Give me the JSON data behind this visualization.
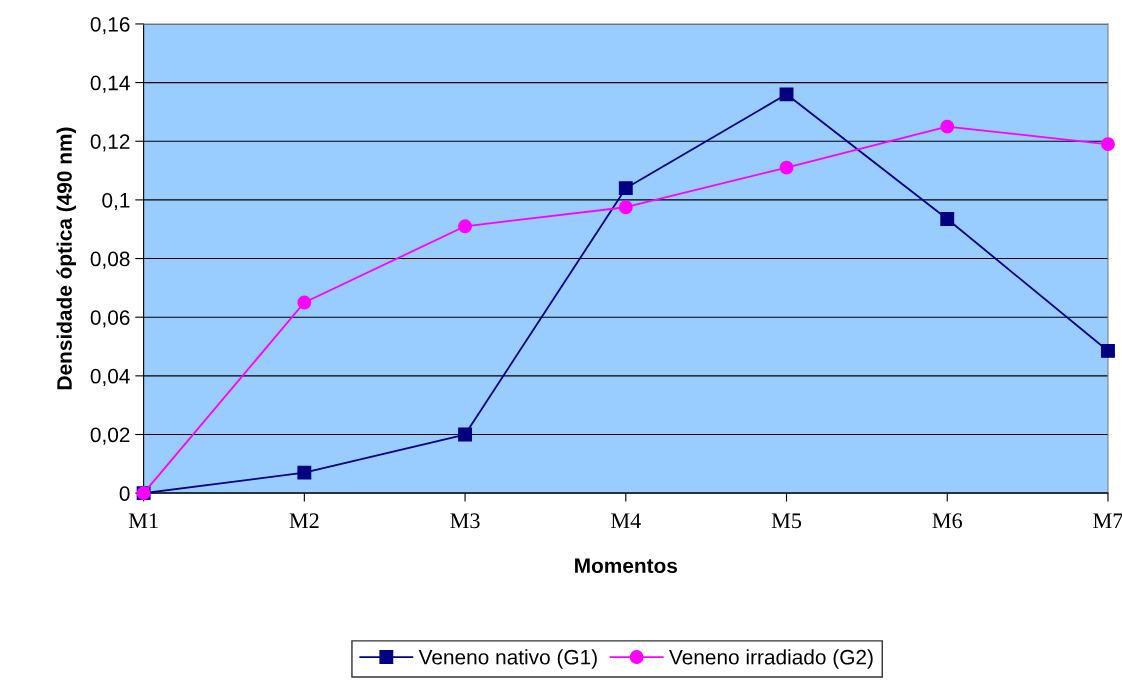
{
  "chart_data": {
    "type": "line",
    "xlabel": "Momentos",
    "ylabel": "Densidade óptica (490 nm)",
    "categories": [
      "M1",
      "M2",
      "M3",
      "M4",
      "M5",
      "M6",
      "M7"
    ],
    "series": [
      {
        "name": "Veneno nativo (G1)",
        "color": "#000080",
        "marker": "square",
        "values": [
          0,
          0.007,
          0.02,
          0.104,
          0.136,
          0.0935,
          0.0485
        ]
      },
      {
        "name": "Veneno irradiado (G2)",
        "color": "#ff00ff",
        "marker": "circle",
        "values": [
          0,
          0.065,
          0.091,
          0.0975,
          0.111,
          0.125,
          0.119
        ]
      }
    ],
    "ylim": [
      0,
      0.16
    ],
    "yticks": [
      {
        "value": 0,
        "label": "0"
      },
      {
        "value": 0.02,
        "label": "0,02"
      },
      {
        "value": 0.04,
        "label": "0,04"
      },
      {
        "value": 0.06,
        "label": "0,06"
      },
      {
        "value": 0.08,
        "label": "0,08"
      },
      {
        "value": 0.1,
        "label": "0,1"
      },
      {
        "value": 0.12,
        "label": "0,12"
      },
      {
        "value": 0.14,
        "label": "0,14"
      },
      {
        "value": 0.16,
        "label": "0,16"
      }
    ],
    "grid": "y",
    "legend": "bottom",
    "line_style": "solid"
  }
}
